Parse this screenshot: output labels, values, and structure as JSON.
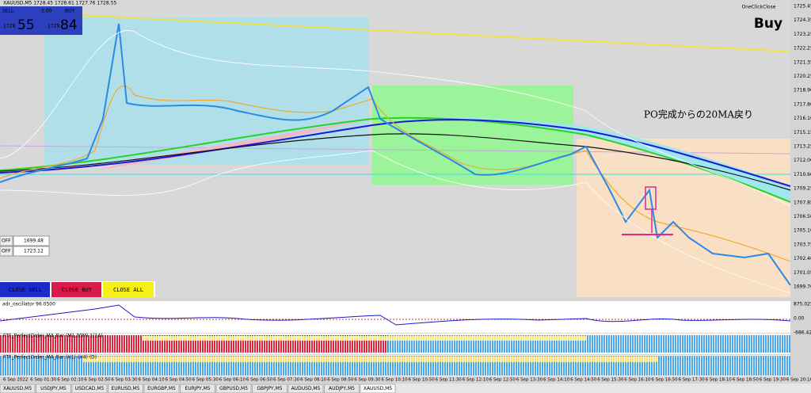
{
  "header": {
    "symbol_info": "XAUUSD,M5  1728.45 1728.61 1727.76 1728.55",
    "sell_label": "SELL",
    "lot": "3.00",
    "buy_label": "BUY",
    "sell_big": "1728",
    "sell_pips": "55",
    "buy_big": "1728",
    "buy_pips": "84",
    "one_click": "OneClickClose",
    "signal": "Buy"
  },
  "annotation": "PO完成からの20MA戻り",
  "off_rows": [
    {
      "button": "OFF",
      "price": "1699.48"
    },
    {
      "button": "OFF",
      "price": "1723.12"
    }
  ],
  "close_buttons": [
    "CLOSE SELL",
    "CLOSE BUY",
    "CLOSE ALL"
  ],
  "price_axis": [
    "1725.45",
    "1724.35",
    "1723.25",
    "1722.25",
    "1721.35",
    "1720.25",
    "1718.90",
    "1717.80",
    "1716.10",
    "1715.15",
    "1713.25",
    "1712.00",
    "1710.60",
    "1709.25",
    "1707.85",
    "1706.50",
    "1705.10",
    "1703.75",
    "1702.40",
    "1701.05",
    "1699.70"
  ],
  "oscillator": {
    "label": "adr_oscillator 96.0500",
    "ticks": [
      "875.025",
      "0.00",
      "-686.425"
    ]
  },
  "bar_panels": [
    "FTF_PerfectOrder_MA_Bar (M1,30M) 1(14)",
    "FTF_PerfectOrder_MA_Bar (H1) (H4) (D)"
  ],
  "time_axis": [
    "6 Sep 2022",
    "6 Sep 01:30",
    "6 Sep 02:10",
    "6 Sep 02:50",
    "6 Sep 03:30",
    "6 Sep 04:10",
    "6 Sep 04:50",
    "6 Sep 05:30",
    "6 Sep 06:10",
    "6 Sep 06:50",
    "6 Sep 07:30",
    "6 Sep 08:10",
    "6 Sep 08:50",
    "6 Sep 09:30",
    "6 Sep 10:10",
    "6 Sep 10:50",
    "6 Sep 11:30",
    "6 Sep 12:10",
    "6 Sep 12:50",
    "6 Sep 13:30",
    "6 Sep 14:10",
    "6 Sep 14:50",
    "6 Sep 15:30",
    "6 Sep 16:10",
    "6 Sep 16:50",
    "6 Sep 17:30",
    "6 Sep 18:10",
    "6 Sep 18:50",
    "6 Sep 19:30",
    "6 Sep 20:10"
  ],
  "tabs": [
    "XAUUSD,M5",
    "USDJPY,M5",
    "USDCAD,M5",
    "EURUSD,M5",
    "EURGBP,M5",
    "EURJPY,M5",
    "GBPUSD,M5",
    "GBPJPY,M5",
    "AUDUSD,M5",
    "AUDJPY,M5",
    "XAUUSD,M5"
  ]
}
